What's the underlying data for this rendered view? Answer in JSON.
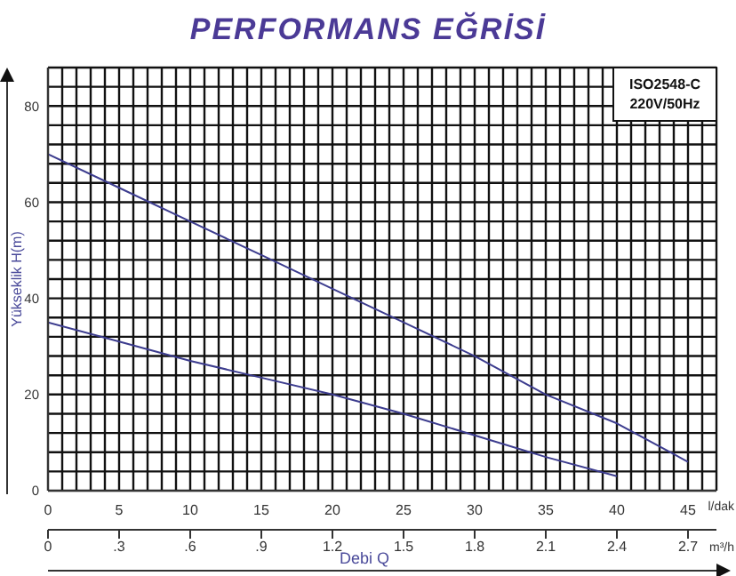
{
  "chart_data": {
    "type": "line",
    "title": "PERFORMANS EĞRİSİ",
    "xlabel": "l/dak",
    "x2label": "m³/h",
    "ylabel": "Yükseklik H(m)",
    "annotations": [
      "ISO2548-C",
      "220V/50Hz",
      "Debi Q"
    ],
    "series": [
      {
        "color": "#3c3c8e",
        "x": [
          0,
          5,
          10,
          15,
          20,
          25,
          30,
          35,
          40,
          45
        ],
        "values": [
          70,
          63,
          56,
          49,
          42,
          35,
          28,
          20,
          14,
          6
        ]
      },
      {
        "color": "#3c3c8e",
        "x": [
          0,
          5,
          10,
          15,
          20,
          25,
          30,
          35,
          40
        ],
        "values": [
          35,
          31,
          27,
          23.5,
          20,
          16,
          11.5,
          7,
          3
        ]
      }
    ],
    "xlim": [
      0,
      47
    ],
    "xticks": [
      0,
      {
        "value": 1,
        "label": null
      },
      {
        "value": 2,
        "label": null
      },
      {
        "value": 3,
        "label": null
      },
      {
        "value": 4,
        "label": null
      },
      5,
      {
        "value": 6,
        "label": null
      },
      {
        "value": 7,
        "label": null
      },
      {
        "value": 8,
        "label": null
      },
      {
        "value": 9,
        "label": null
      },
      10,
      {
        "value": 11,
        "label": null
      },
      {
        "value": 12,
        "label": null
      },
      {
        "value": 13,
        "label": null
      },
      {
        "value": 14,
        "label": null
      },
      15,
      {
        "value": 16,
        "label": null
      },
      {
        "value": 17,
        "label": null
      },
      {
        "value": 18,
        "label": null
      },
      {
        "value": 19,
        "label": null
      },
      20,
      {
        "value": 21,
        "label": null
      },
      {
        "value": 22,
        "label": null
      },
      {
        "value": 23,
        "label": null
      },
      {
        "value": 24,
        "label": null
      },
      25,
      {
        "value": 26,
        "label": null
      },
      {
        "value": 27,
        "label": null
      },
      {
        "value": 28,
        "label": null
      },
      {
        "value": 29,
        "label": null
      },
      30,
      {
        "value": 31,
        "label": null
      },
      {
        "value": 32,
        "label": null
      },
      {
        "value": 33,
        "label": null
      },
      {
        "value": 34,
        "label": null
      },
      35,
      {
        "value": 36,
        "label": null
      },
      {
        "value": 37,
        "label": null
      },
      {
        "value": 38,
        "label": null
      },
      {
        "value": 39,
        "label": null
      },
      40,
      {
        "value": 41,
        "label": null
      },
      {
        "value": 42,
        "label": null
      },
      {
        "value": 43,
        "label": null
      },
      {
        "value": 44,
        "label": null
      },
      45,
      {
        "value": 46,
        "label": null
      },
      {
        "value": 47,
        "label": null
      }
    ],
    "x2lim": [
      0,
      2.82
    ],
    "x2ticks": [
      0,
      {
        "value": 0.3,
        "label": ".3"
      },
      {
        "value": 0.6,
        "label": ".6"
      },
      {
        "value": 0.9,
        "label": ".9"
      },
      1.2,
      1.5,
      1.8,
      2.1,
      2.4,
      2.7
    ],
    "ylim": [
      0,
      88
    ],
    "yticks": [
      0,
      {
        "value": 4,
        "label": null
      },
      {
        "value": 8,
        "label": null
      },
      {
        "value": 12,
        "label": null
      },
      {
        "value": 16,
        "label": null
      },
      20,
      {
        "value": 24,
        "label": null
      },
      {
        "value": 28,
        "label": null
      },
      {
        "value": 32,
        "label": null
      },
      {
        "value": 36,
        "label": null
      },
      40,
      {
        "value": 44,
        "label": null
      },
      {
        "value": 48,
        "label": null
      },
      {
        "value": 52,
        "label": null
      },
      {
        "value": 56,
        "label": null
      },
      60,
      {
        "value": 64,
        "label": null
      },
      {
        "value": 68,
        "label": null
      },
      {
        "value": 72,
        "label": null
      },
      {
        "value": 76,
        "label": null
      },
      80,
      {
        "value": 84,
        "label": null
      },
      {
        "value": 88,
        "label": null
      }
    ],
    "grid": true,
    "marker": "none",
    "line_style": "solid"
  }
}
